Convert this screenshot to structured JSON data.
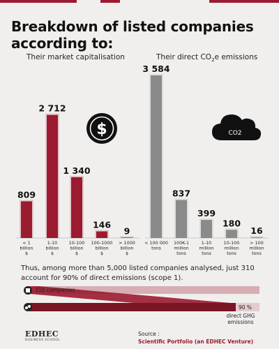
{
  "title": "Breakdown of listed companies according to:",
  "left_subtitle": "Their market capitalisation",
  "right_subtitle_pre": "Their direct CO",
  "right_subtitle_sub": "2",
  "right_subtitle_post": "e emissions",
  "icons": {
    "left": "dollar-coin-icon",
    "right": "co2-cloud-icon"
  },
  "co2_icon_text": "CO2",
  "colors": {
    "accent": "#9b1b30",
    "grey": "#8a8a8a",
    "background": "#f1efed",
    "band_light": "#d7aeb4"
  },
  "chart_data": [
    {
      "type": "bar",
      "title": "Their market capitalisation",
      "categories": [
        [
          "< 1",
          "billion",
          "$"
        ],
        [
          "1-10",
          "billion",
          "$"
        ],
        [
          "10-100",
          "billion",
          "$"
        ],
        [
          "100-1000",
          "billion",
          "$"
        ],
        [
          "> 1000",
          "billion",
          "$"
        ]
      ],
      "values": [
        809,
        2712,
        1340,
        146,
        9
      ],
      "value_labels": [
        "809",
        "2 712",
        "1 340",
        "146",
        "9"
      ],
      "ylim": [
        0,
        3584
      ],
      "grid": false,
      "color": "#9b1b30"
    },
    {
      "type": "bar",
      "title": "Their direct CO2e emissions",
      "categories": [
        [
          "< 100 000",
          "tons"
        ],
        [
          "100K-1",
          "million",
          "tons"
        ],
        [
          "1-10",
          "million",
          "tons"
        ],
        [
          "10-100",
          "million",
          "tons"
        ],
        [
          "> 100",
          "million",
          "tons"
        ]
      ],
      "values": [
        3584,
        837,
        399,
        180,
        16
      ],
      "value_labels": [
        "3 584",
        "837",
        "399",
        "180",
        "16"
      ],
      "ylim": [
        0,
        3584
      ],
      "grid": false,
      "color": "#8a8a8a"
    }
  ],
  "summary": "Thus, among more than 5,000 listed companies analysed, just 310 account for 90% of direct emissions (scope 1).",
  "flow": {
    "companies_label": "310 companies",
    "emissions_pct": "90 %",
    "emissions_label_1": "direct GHG",
    "emissions_label_2": "emissions",
    "companies_icon": "building-icon",
    "emissions_icon": "smoke-cloud-icon"
  },
  "logo": {
    "name": "EDHEC",
    "sub": "BUSINESS SCHOOL"
  },
  "source": {
    "label": "Source :",
    "value": "Scientific Portfolio (an EDHEC Venture)"
  }
}
